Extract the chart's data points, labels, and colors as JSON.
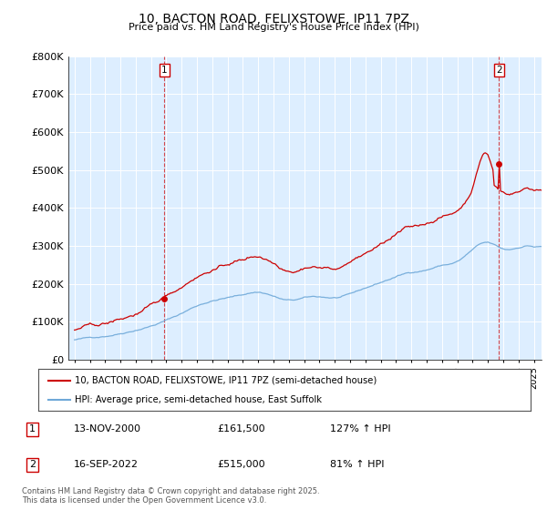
{
  "title": "10, BACTON ROAD, FELIXSTOWE, IP11 7PZ",
  "subtitle": "Price paid vs. HM Land Registry's House Price Index (HPI)",
  "legend_line1": "10, BACTON ROAD, FELIXSTOWE, IP11 7PZ (semi-detached house)",
  "legend_line2": "HPI: Average price, semi-detached house, East Suffolk",
  "footnote": "Contains HM Land Registry data © Crown copyright and database right 2025.\nThis data is licensed under the Open Government Licence v3.0.",
  "sale1_label": "1",
  "sale1_date": "13-NOV-2000",
  "sale1_price": "£161,500",
  "sale1_hpi": "127% ↑ HPI",
  "sale2_label": "2",
  "sale2_date": "16-SEP-2022",
  "sale2_price": "£515,000",
  "sale2_hpi": "81% ↑ HPI",
  "sale1_year": 2000.87,
  "sale1_value": 161500,
  "sale2_year": 2022.71,
  "sale2_value": 515000,
  "hpi_color": "#6ea8d8",
  "price_color": "#cc0000",
  "vline_color": "#cc0000",
  "bg_color": "#ddeeff",
  "plot_bg": "#ddeeff",
  "grid_color": "#ffffff",
  "ylim": [
    0,
    800000
  ],
  "xlim_start": 1994.6,
  "xlim_end": 2025.5,
  "yticks": [
    0,
    100000,
    200000,
    300000,
    400000,
    500000,
    600000,
    700000,
    800000
  ],
  "ytick_labels": [
    "£0",
    "£100K",
    "£200K",
    "£300K",
    "£400K",
    "£500K",
    "£600K",
    "£700K",
    "£800K"
  ]
}
